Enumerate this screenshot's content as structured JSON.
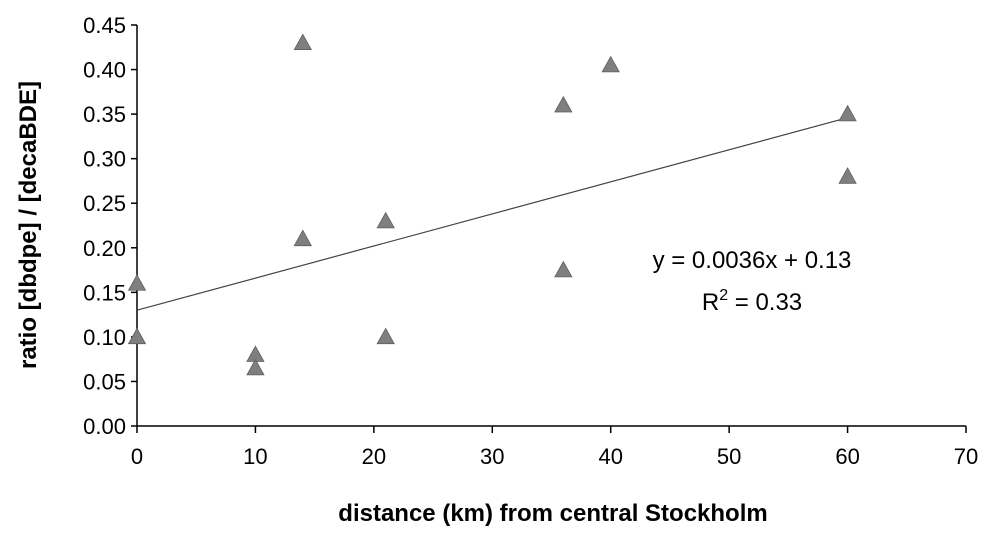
{
  "chart_data": {
    "type": "scatter",
    "xlabel": "distance (km) from central Stockholm",
    "ylabel": "ratio [dbdpe] / [decaBDE]",
    "xlim": [
      0,
      70
    ],
    "ylim": [
      0,
      0.45
    ],
    "x_ticks": [
      "0",
      "10",
      "20",
      "30",
      "40",
      "50",
      "60",
      "70"
    ],
    "y_ticks": [
      "0.00",
      "0.05",
      "0.10",
      "0.15",
      "0.20",
      "0.25",
      "0.30",
      "0.35",
      "0.40",
      "0.45"
    ],
    "grid": false,
    "marker": "triangle",
    "marker_color": "#7f7f7f",
    "points": [
      {
        "x": 0,
        "y": 0.16
      },
      {
        "x": 0,
        "y": 0.1
      },
      {
        "x": 10,
        "y": 0.08
      },
      {
        "x": 10,
        "y": 0.065
      },
      {
        "x": 14,
        "y": 0.43
      },
      {
        "x": 14,
        "y": 0.21
      },
      {
        "x": 21,
        "y": 0.23
      },
      {
        "x": 21,
        "y": 0.1
      },
      {
        "x": 36,
        "y": 0.36
      },
      {
        "x": 36,
        "y": 0.175
      },
      {
        "x": 40,
        "y": 0.405
      },
      {
        "x": 60,
        "y": 0.35
      },
      {
        "x": 60,
        "y": 0.28
      }
    ],
    "trendline": {
      "type": "linear",
      "slope": 0.0036,
      "intercept": 0.13,
      "x_range": [
        0,
        60
      ],
      "equation": "y = 0.0036x + 0.13",
      "r2_prefix": "R",
      "r2_sup": "2",
      "r2_suffix": " = 0.33"
    }
  }
}
